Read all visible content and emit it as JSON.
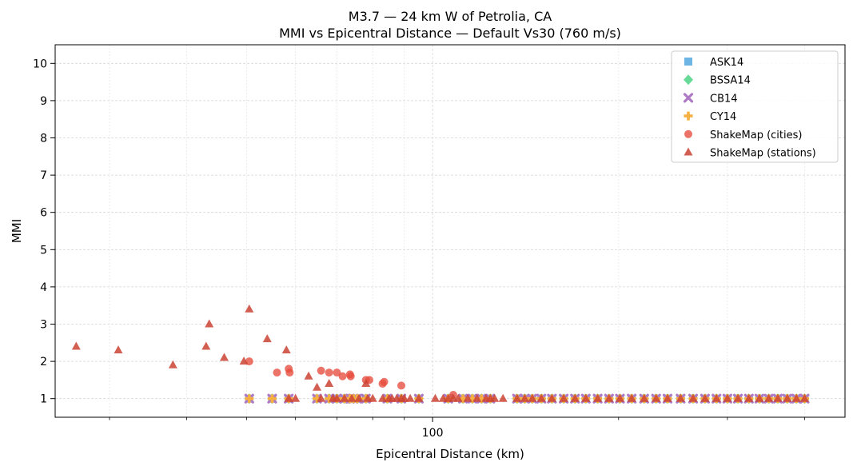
{
  "chart_data": {
    "type": "scatter",
    "title": "M3.7 — 24 km W of Petrolia, CA",
    "subtitle": "MMI vs Epicentral Distance — Default Vs30 (760 m/s)",
    "xlabel": "Epicentral Distance (km)",
    "ylabel": "MMI",
    "x_scale": "log",
    "xlim": [
      24.5,
      465
    ],
    "ylim": [
      0.5,
      10.5
    ],
    "x_ticks": [
      100
    ],
    "x_tick_labels": [
      "100"
    ],
    "y_ticks": [
      1,
      2,
      3,
      4,
      5,
      6,
      7,
      8,
      9,
      10
    ],
    "y_tick_labels": [
      "1",
      "2",
      "3",
      "4",
      "5",
      "6",
      "7",
      "8",
      "9",
      "10"
    ],
    "grid": true,
    "legend_position": "top-right",
    "series": [
      {
        "name": "ASK14",
        "marker": "square",
        "color": "#5DADE2",
        "x": [
          50.5,
          55,
          58.5,
          65,
          68,
          70,
          72,
          73.5,
          74.5,
          75.5,
          78,
          84.5,
          89,
          95,
          106,
          112,
          116,
          120,
          124,
          137,
          141,
          145,
          150,
          156,
          163,
          170,
          177,
          185,
          193,
          201,
          210,
          220,
          230,
          240,
          252,
          264,
          276,
          288,
          300,
          312,
          325,
          338,
          350,
          362,
          375,
          388,
          400
        ],
        "y": [
          1,
          1,
          1,
          1,
          1,
          1,
          1,
          1,
          1,
          1,
          1,
          1,
          1,
          1,
          1,
          1,
          1,
          1,
          1,
          1,
          1,
          1,
          1,
          1,
          1,
          1,
          1,
          1,
          1,
          1,
          1,
          1,
          1,
          1,
          1,
          1,
          1,
          1,
          1,
          1,
          1,
          1,
          1,
          1,
          1,
          1,
          1
        ]
      },
      {
        "name": "BSSA14",
        "marker": "diamond",
        "color": "#58D68D",
        "x": [
          50.5,
          55,
          58.5,
          65,
          68,
          70,
          72,
          73.5,
          74.5,
          75.5,
          78,
          84.5,
          89,
          95,
          106,
          112,
          116,
          120,
          124,
          137,
          141,
          145,
          150,
          156,
          163,
          170,
          177,
          185,
          193,
          201,
          210,
          220,
          230,
          240,
          252,
          264,
          276,
          288,
          300,
          312,
          325,
          338,
          350,
          362,
          375,
          388,
          400
        ],
        "y": [
          1,
          1,
          1,
          1,
          1,
          1,
          1,
          1,
          1,
          1,
          1,
          1,
          1,
          1,
          1,
          1,
          1,
          1,
          1,
          1,
          1,
          1,
          1,
          1,
          1,
          1,
          1,
          1,
          1,
          1,
          1,
          1,
          1,
          1,
          1,
          1,
          1,
          1,
          1,
          1,
          1,
          1,
          1,
          1,
          1,
          1,
          1
        ]
      },
      {
        "name": "CB14",
        "marker": "x",
        "color": "#AF7AC5",
        "x": [
          50.5,
          55,
          58.5,
          65,
          68,
          70,
          72,
          73.5,
          74.5,
          75.5,
          78,
          84.5,
          89,
          95,
          106,
          112,
          116,
          120,
          124,
          137,
          141,
          145,
          150,
          156,
          163,
          170,
          177,
          185,
          193,
          201,
          210,
          220,
          230,
          240,
          252,
          264,
          276,
          288,
          300,
          312,
          325,
          338,
          350,
          362,
          375,
          388,
          400
        ],
        "y": [
          1,
          1,
          1,
          1,
          1,
          1,
          1,
          1,
          1,
          1,
          1,
          1,
          1,
          1,
          1,
          1,
          1,
          1,
          1,
          1,
          1,
          1,
          1,
          1,
          1,
          1,
          1,
          1,
          1,
          1,
          1,
          1,
          1,
          1,
          1,
          1,
          1,
          1,
          1,
          1,
          1,
          1,
          1,
          1,
          1,
          1,
          1
        ]
      },
      {
        "name": "CY14",
        "marker": "plus",
        "color": "#F5B041",
        "x": [
          50.5,
          55,
          58.5,
          65,
          68,
          70,
          72,
          73.5,
          74.5,
          75.5,
          78,
          84.5,
          89,
          95,
          106,
          112,
          116,
          120,
          124,
          137,
          141,
          145,
          150,
          156,
          163,
          170,
          177,
          185,
          193,
          201,
          210,
          220,
          230,
          240,
          252,
          264,
          276,
          288,
          300,
          312,
          325,
          338,
          350,
          362,
          375,
          388,
          400
        ],
        "y": [
          1,
          1,
          1,
          1,
          1,
          1,
          1,
          1,
          1,
          1,
          1,
          1,
          1,
          1,
          1,
          1,
          1,
          1,
          1,
          1,
          1,
          1,
          1,
          1,
          1,
          1,
          1,
          1,
          1,
          1,
          1,
          1,
          1,
          1,
          1,
          1,
          1,
          1,
          1,
          1,
          1,
          1,
          1,
          1,
          1,
          1,
          1
        ]
      },
      {
        "name": "ShakeMap (cities)",
        "marker": "circle",
        "color": "#E74C3C",
        "x": [
          50.5,
          56,
          58.5,
          58.7,
          66,
          68,
          70,
          71.5,
          73.5,
          73.7,
          78,
          79,
          83,
          83.5,
          89,
          108
        ],
        "y": [
          2.0,
          1.7,
          1.8,
          1.7,
          1.75,
          1.7,
          1.7,
          1.6,
          1.65,
          1.6,
          1.5,
          1.5,
          1.4,
          1.45,
          1.35,
          1.1
        ]
      },
      {
        "name": "ShakeMap (stations)",
        "marker": "triangle",
        "color": "#CB4335",
        "x": [
          26.5,
          31,
          38,
          43,
          43.5,
          46,
          49.5,
          50.5,
          54,
          58,
          58.5,
          60,
          63,
          65,
          66,
          68,
          69,
          70,
          72,
          74,
          76,
          78,
          78.5,
          80,
          83,
          85,
          86,
          87.5,
          89,
          90,
          92,
          95,
          101,
          104,
          106,
          108,
          110,
          114,
          118,
          122,
          124,
          126,
          130,
          137,
          141,
          145,
          150,
          156,
          163,
          170,
          177,
          185,
          193,
          201,
          210,
          220,
          230,
          240,
          252,
          264,
          276,
          288,
          300,
          312,
          325,
          338,
          350,
          362,
          375,
          388,
          400
        ],
        "y": [
          2.4,
          2.3,
          1.9,
          2.4,
          3.0,
          2.1,
          2.0,
          3.4,
          2.6,
          2.3,
          1.0,
          1.0,
          1.6,
          1.3,
          1.0,
          1.4,
          1.0,
          1.0,
          1.0,
          1.0,
          1.0,
          1.4,
          1.0,
          1.0,
          1.0,
          1.0,
          1.0,
          1.0,
          1.0,
          1.0,
          1.0,
          1.0,
          1.0,
          1.0,
          1.0,
          1.0,
          1.0,
          1.0,
          1.0,
          1.0,
          1.0,
          1.0,
          1.0,
          1.0,
          1.0,
          1.0,
          1.0,
          1.0,
          1.0,
          1.0,
          1.0,
          1.0,
          1.0,
          1.0,
          1.0,
          1.0,
          1.0,
          1.0,
          1.0,
          1.0,
          1.0,
          1.0,
          1.0,
          1.0,
          1.0,
          1.0,
          1.0,
          1.0,
          1.0,
          1.0,
          1.0
        ]
      }
    ]
  }
}
